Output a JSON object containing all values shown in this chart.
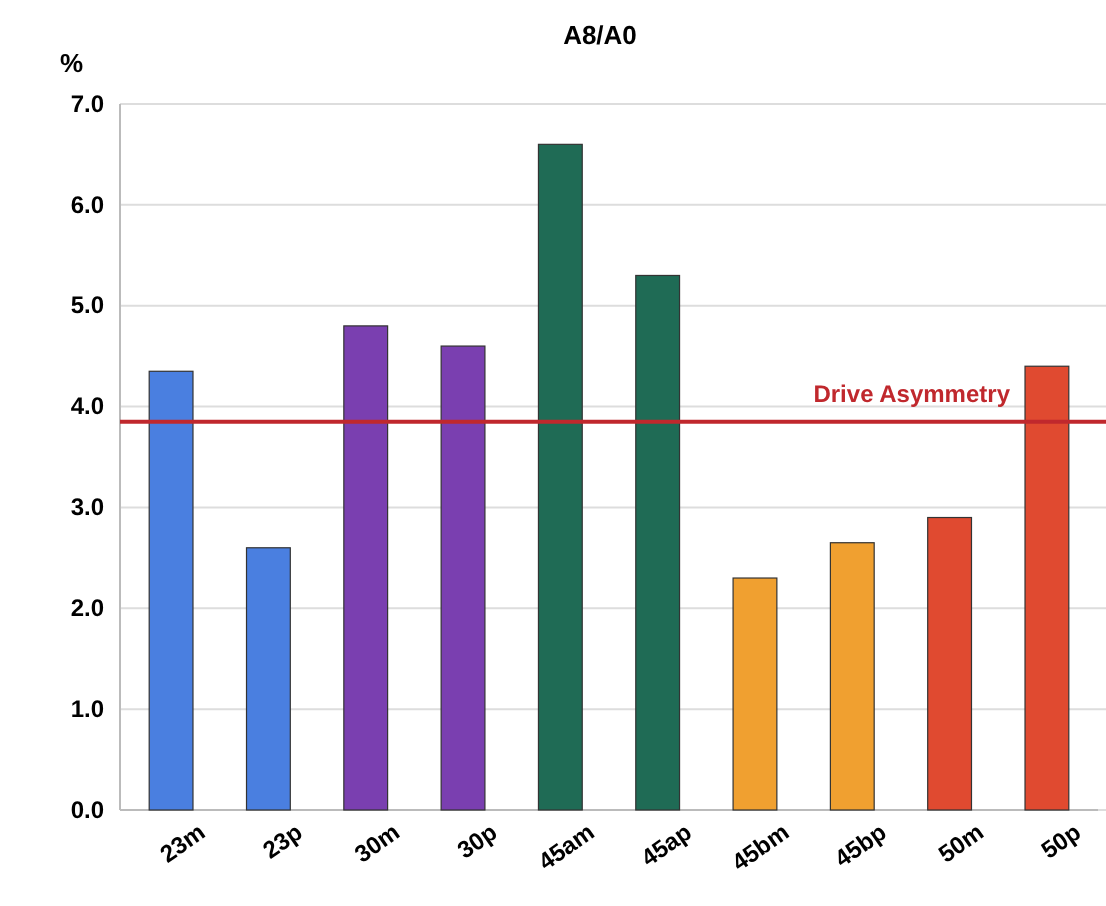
{
  "chart_data": {
    "type": "bar",
    "title": "A8/A0",
    "ylabel": "%",
    "categories": [
      "23m",
      "23p",
      "30m",
      "30p",
      "45am",
      "45ap",
      "45bm",
      "45bp",
      "50m",
      "50p"
    ],
    "values": [
      4.35,
      2.6,
      4.8,
      4.6,
      6.6,
      5.3,
      2.3,
      2.65,
      2.9,
      4.4
    ],
    "colors": [
      "#4a7fe0",
      "#4a7fe0",
      "#7a3fb0",
      "#7a3fb0",
      "#1f6b55",
      "#1f6b55",
      "#f0a030",
      "#f0a030",
      "#e04a30",
      "#e04a30"
    ],
    "ylim": [
      0,
      7
    ],
    "yticks": [
      {
        "value": 0,
        "label": "0.0"
      },
      {
        "value": 1,
        "label": "1.0"
      },
      {
        "value": 2,
        "label": "2.0"
      },
      {
        "value": 3,
        "label": "3.0"
      },
      {
        "value": 4,
        "label": "4.0"
      },
      {
        "value": 5,
        "label": "5.0"
      },
      {
        "value": 6,
        "label": "6.0"
      },
      {
        "value": 7,
        "label": "7.0"
      }
    ],
    "grid": "y",
    "ref_lines": [
      {
        "axis": "y",
        "value": 3.85,
        "label": "Drive Asymmetry",
        "color": "#c0282d"
      }
    ]
  }
}
